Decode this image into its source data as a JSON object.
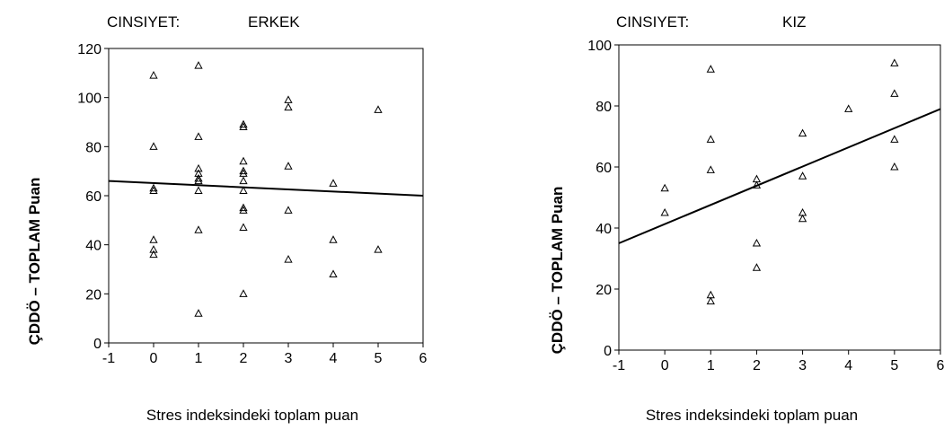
{
  "chart_data": [
    {
      "type": "scatter",
      "title_key": "CINSIYET:",
      "title_value": "ERKEK",
      "xlabel": "Stres indeksindeki toplam puan",
      "ylabel": "ÇDDÖ – TOPLAM Puan",
      "xlim": [
        -1,
        6
      ],
      "ylim": [
        0,
        120
      ],
      "xticks": [
        "-1",
        "0",
        "1",
        "2",
        "3",
        "4",
        "5",
        "6"
      ],
      "yticks": [
        "0",
        "20",
        "40",
        "60",
        "80",
        "100",
        "120"
      ],
      "marker": "triangle-open",
      "grid": false,
      "fit_line": {
        "x": [
          -1,
          6
        ],
        "y": [
          66,
          60
        ]
      },
      "points": [
        {
          "x": 0,
          "y": 109
        },
        {
          "x": 0,
          "y": 80
        },
        {
          "x": 0,
          "y": 63
        },
        {
          "x": 0,
          "y": 62
        },
        {
          "x": 0,
          "y": 42
        },
        {
          "x": 0,
          "y": 38
        },
        {
          "x": 0,
          "y": 36
        },
        {
          "x": 1,
          "y": 113
        },
        {
          "x": 1,
          "y": 84
        },
        {
          "x": 1,
          "y": 71
        },
        {
          "x": 1,
          "y": 69
        },
        {
          "x": 1,
          "y": 67
        },
        {
          "x": 1,
          "y": 66
        },
        {
          "x": 1,
          "y": 62
        },
        {
          "x": 1,
          "y": 46
        },
        {
          "x": 1,
          "y": 12
        },
        {
          "x": 2,
          "y": 89
        },
        {
          "x": 2,
          "y": 88
        },
        {
          "x": 2,
          "y": 74
        },
        {
          "x": 2,
          "y": 70
        },
        {
          "x": 2,
          "y": 69
        },
        {
          "x": 2,
          "y": 66
        },
        {
          "x": 2,
          "y": 62
        },
        {
          "x": 2,
          "y": 55
        },
        {
          "x": 2,
          "y": 54
        },
        {
          "x": 2,
          "y": 47
        },
        {
          "x": 2,
          "y": 20
        },
        {
          "x": 3,
          "y": 99
        },
        {
          "x": 3,
          "y": 96
        },
        {
          "x": 3,
          "y": 72
        },
        {
          "x": 3,
          "y": 54
        },
        {
          "x": 3,
          "y": 34
        },
        {
          "x": 4,
          "y": 65
        },
        {
          "x": 4,
          "y": 42
        },
        {
          "x": 4,
          "y": 28
        },
        {
          "x": 5,
          "y": 95
        },
        {
          "x": 5,
          "y": 38
        }
      ]
    },
    {
      "type": "scatter",
      "title_key": "CINSIYET:",
      "title_value": "KIZ",
      "xlabel": "Stres indeksindeki toplam puan",
      "ylabel": "ÇDDÖ – TOPLAM Puan",
      "xlim": [
        -1,
        6
      ],
      "ylim": [
        0,
        100
      ],
      "xticks": [
        "-1",
        "0",
        "1",
        "2",
        "3",
        "4",
        "5",
        "6"
      ],
      "yticks": [
        "0",
        "20",
        "40",
        "60",
        "80",
        "100"
      ],
      "marker": "triangle-open",
      "grid": false,
      "fit_line": {
        "x": [
          -1,
          6
        ],
        "y": [
          35,
          79
        ]
      },
      "points": [
        {
          "x": 0,
          "y": 53
        },
        {
          "x": 0,
          "y": 45
        },
        {
          "x": 1,
          "y": 92
        },
        {
          "x": 1,
          "y": 69
        },
        {
          "x": 1,
          "y": 59
        },
        {
          "x": 1,
          "y": 18
        },
        {
          "x": 1,
          "y": 16
        },
        {
          "x": 2,
          "y": 56
        },
        {
          "x": 2,
          "y": 54
        },
        {
          "x": 2,
          "y": 35
        },
        {
          "x": 2,
          "y": 27
        },
        {
          "x": 3,
          "y": 71
        },
        {
          "x": 3,
          "y": 57
        },
        {
          "x": 3,
          "y": 45
        },
        {
          "x": 3,
          "y": 43
        },
        {
          "x": 4,
          "y": 79
        },
        {
          "x": 5,
          "y": 94
        },
        {
          "x": 5,
          "y": 84
        },
        {
          "x": 5,
          "y": 69
        },
        {
          "x": 5,
          "y": 60
        }
      ]
    }
  ]
}
